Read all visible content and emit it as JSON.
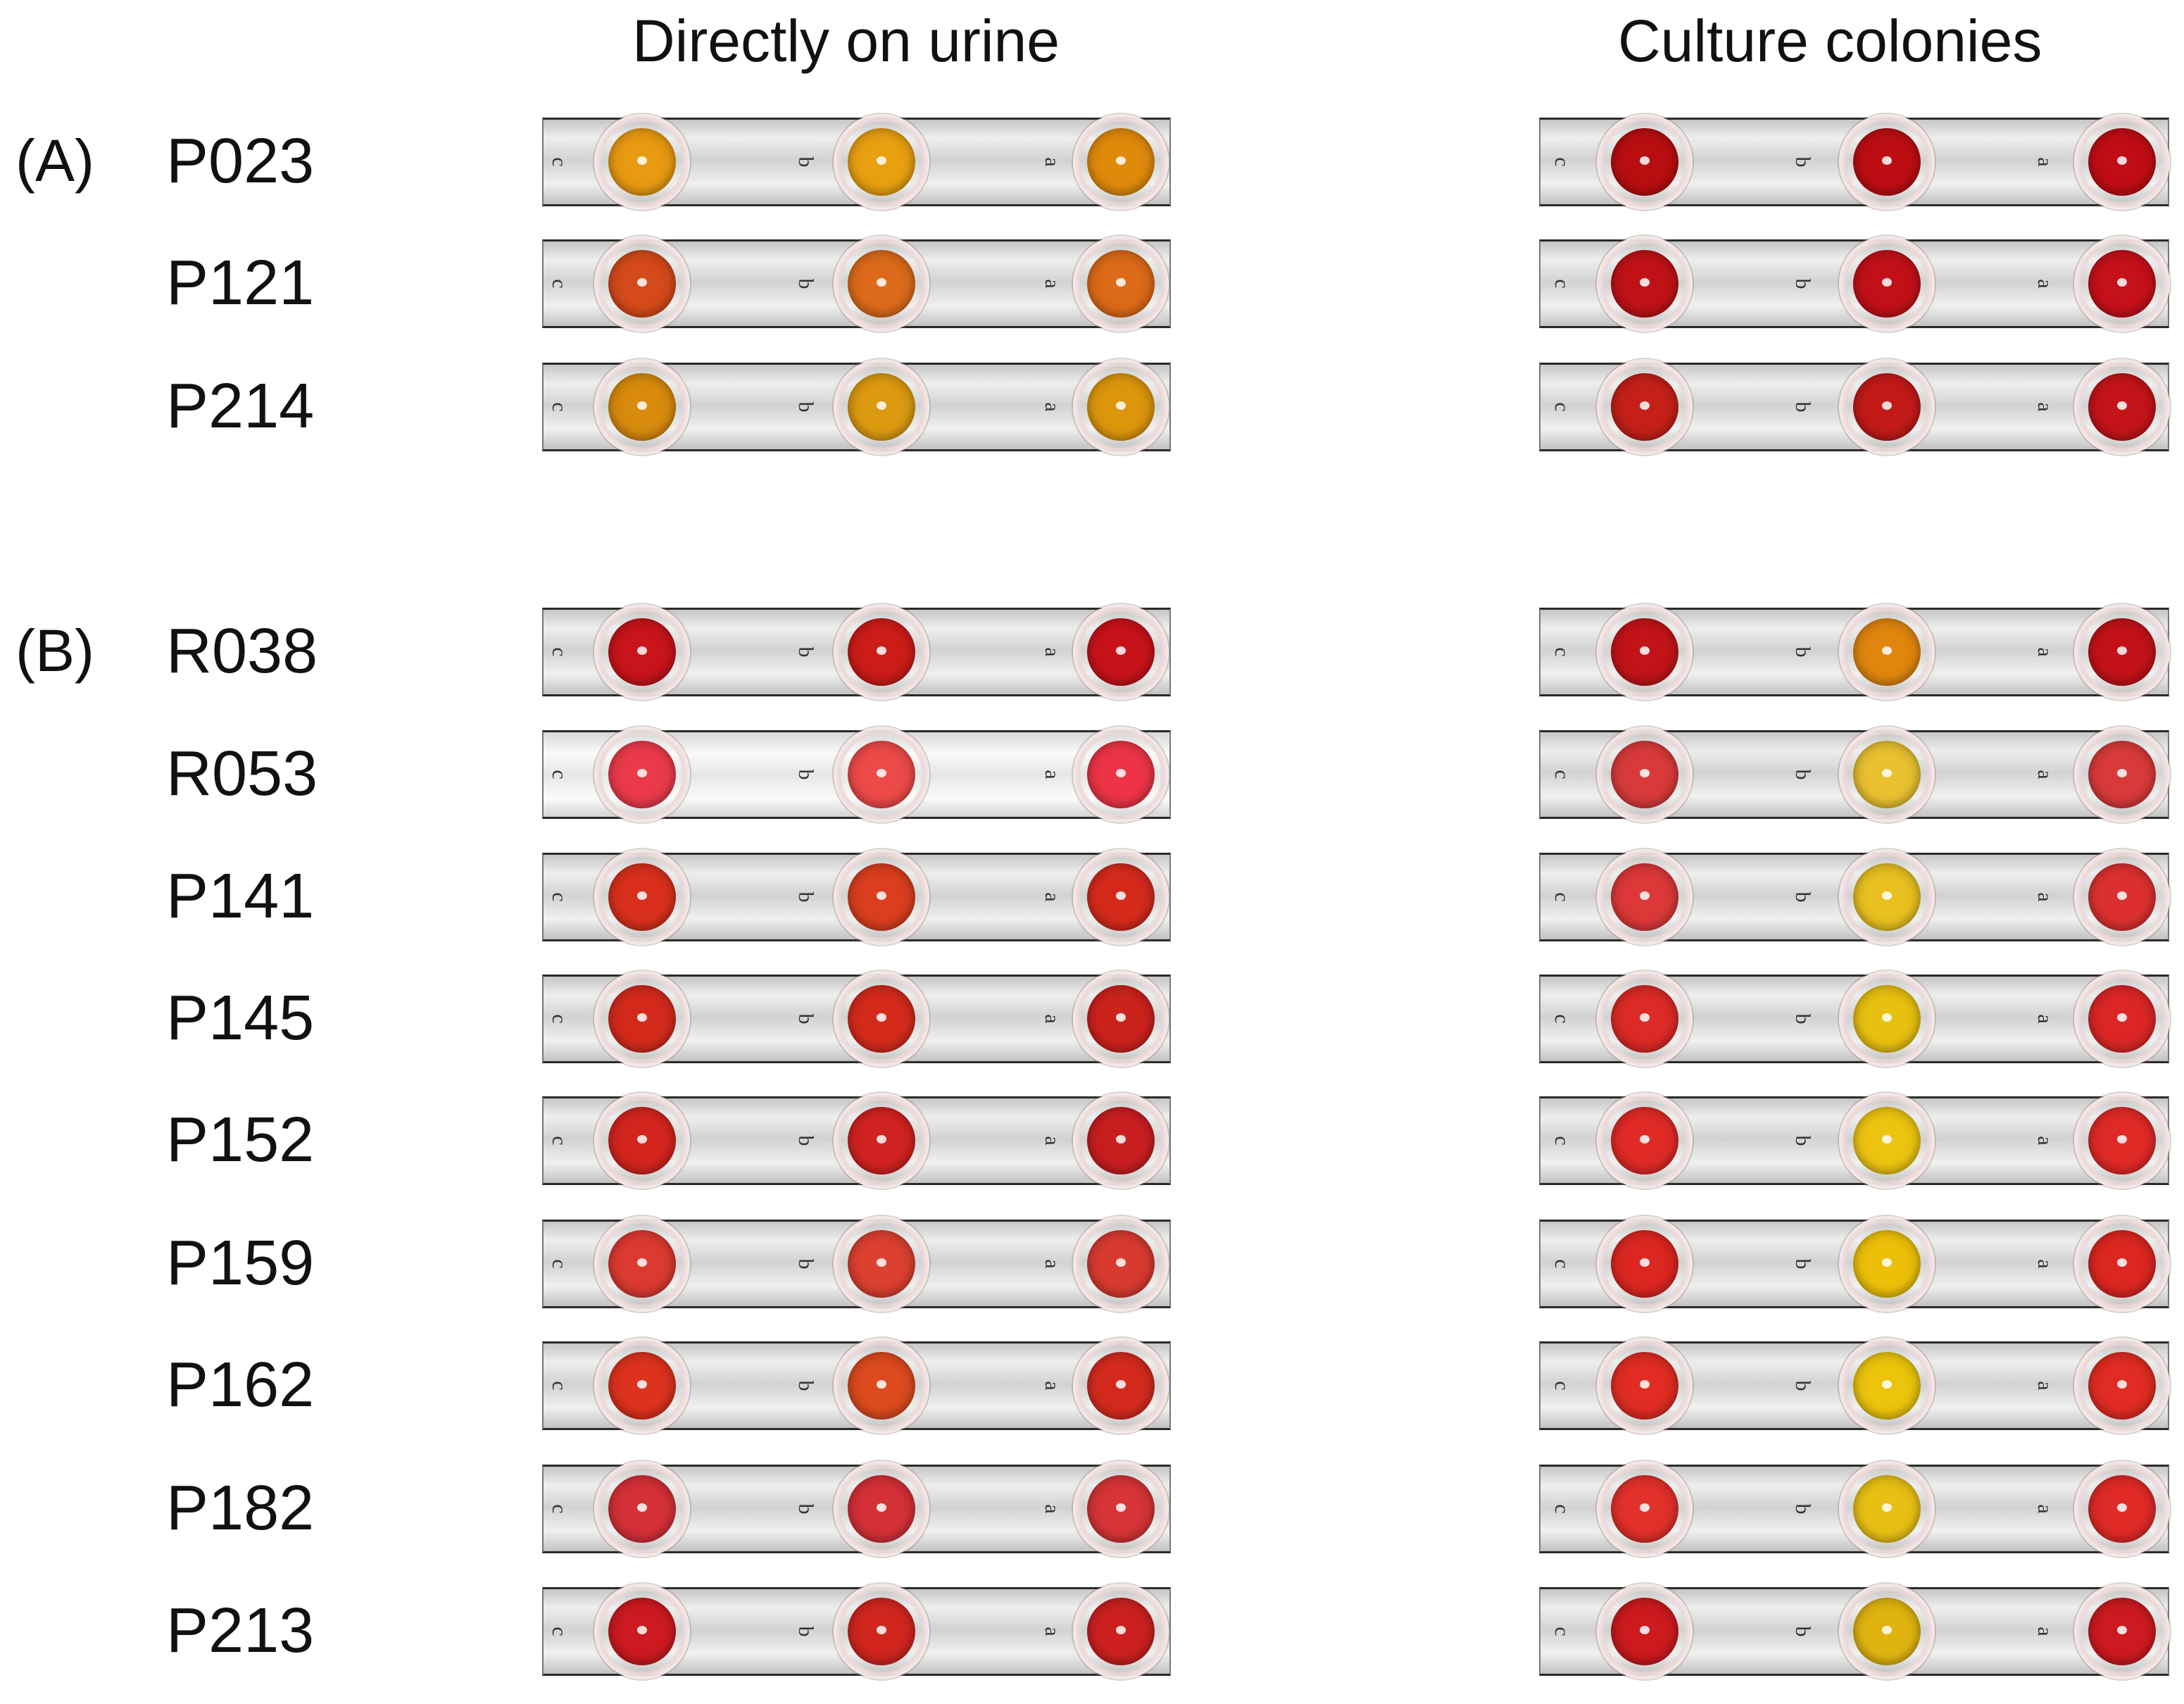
{
  "headers": {
    "left": "Directly on urine",
    "right": "Culture colonies"
  },
  "groups": {
    "a": "(A)",
    "b": "(B)"
  },
  "well_labels": [
    "c",
    "b",
    "a"
  ],
  "samples": [
    {
      "id": "P023",
      "group": "A",
      "urine": [
        "#e89a10",
        "#e8a010",
        "#e08a0c"
      ],
      "culture": [
        "#b80e10",
        "#bc0e12",
        "#c00c14"
      ]
    },
    {
      "id": "P121",
      "group": "A",
      "urine": [
        "#d44a1a",
        "#dc6a1a",
        "#dc6a18"
      ],
      "culture": [
        "#bf1216",
        "#c21018",
        "#c6101a"
      ]
    },
    {
      "id": "P214",
      "group": "A",
      "urine": [
        "#d88a0c",
        "#dc9a10",
        "#dc960c"
      ],
      "culture": [
        "#c42018",
        "#c21a18",
        "#c4141a"
      ]
    },
    {
      "id": "R038",
      "group": "B",
      "urine": [
        "#c8141a",
        "#cc1c18",
        "#c8121a"
      ],
      "culture": [
        "#c21418",
        "#e0860e",
        "#c21218"
      ]
    },
    {
      "id": "R053",
      "group": "B",
      "urine": [
        "#ea3a4a",
        "#ec4a48",
        "#ec3446"
      ],
      "culture": [
        "#d83a3a",
        "#e8c030",
        "#d83a3a"
      ]
    },
    {
      "id": "P141",
      "group": "B",
      "urine": [
        "#d8301c",
        "#da3e1e",
        "#d42a1c"
      ],
      "culture": [
        "#dc3838",
        "#e8c020",
        "#dc3030"
      ]
    },
    {
      "id": "P145",
      "group": "B",
      "urine": [
        "#d42a1c",
        "#d42a1c",
        "#cc221c"
      ],
      "culture": [
        "#dc2a26",
        "#e8c010",
        "#dc2626"
      ]
    },
    {
      "id": "P152",
      "group": "B",
      "urine": [
        "#d4241e",
        "#d02220",
        "#c81e20"
      ],
      "culture": [
        "#e02a26",
        "#ecc410",
        "#e02a26"
      ]
    },
    {
      "id": "P159",
      "group": "B",
      "urine": [
        "#dc3a30",
        "#dc4030",
        "#d83a30"
      ],
      "culture": [
        "#dc2620",
        "#ecc008",
        "#dc2620"
      ]
    },
    {
      "id": "P162",
      "group": "B",
      "urine": [
        "#dc321e",
        "#dc4a1e",
        "#d42a1e"
      ],
      "culture": [
        "#e02c22",
        "#ecc40c",
        "#e02c22"
      ]
    },
    {
      "id": "P182",
      "group": "B",
      "urine": [
        "#d43038",
        "#d43038",
        "#d63436"
      ],
      "culture": [
        "#e2302a",
        "#e8c014",
        "#e02a26"
      ]
    },
    {
      "id": "P213",
      "group": "B",
      "urine": [
        "#cc1a20",
        "#d0261e",
        "#cc2020"
      ],
      "culture": [
        "#cc1a1e",
        "#e0b410",
        "#cc1a20"
      ]
    }
  ]
}
